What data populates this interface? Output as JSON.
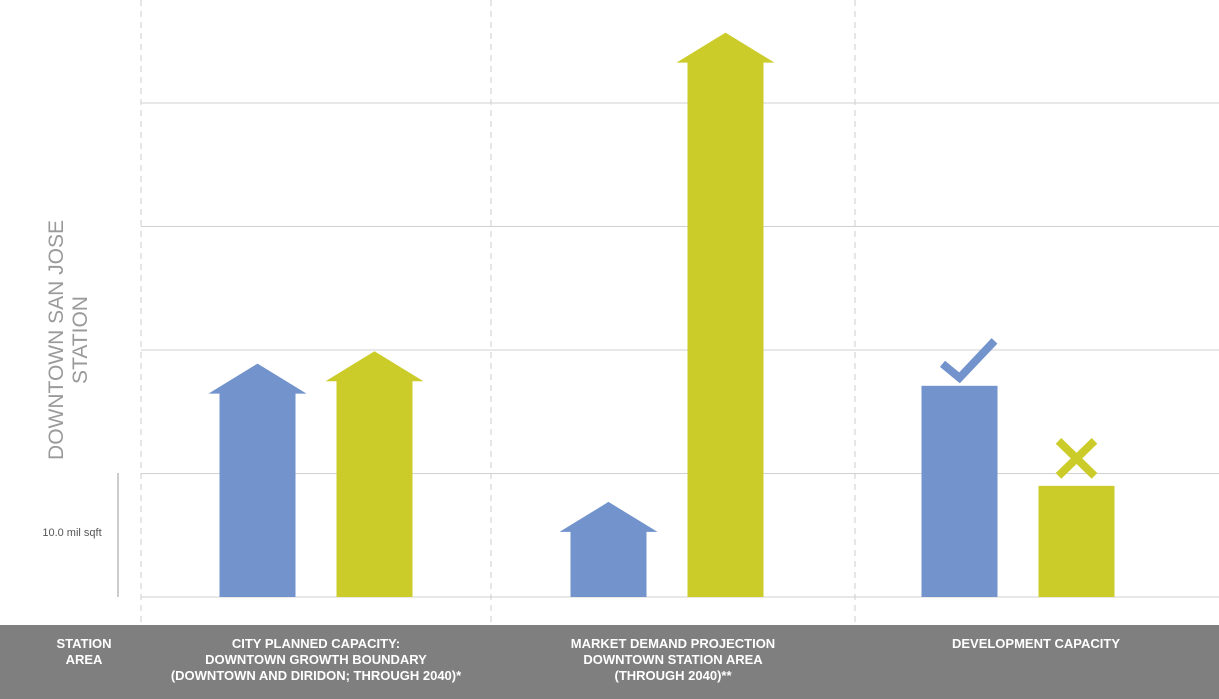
{
  "chart_data": {
    "type": "arrow-bar",
    "y_label": [
      "DOWNTOWN SAN JOSE",
      "STATION"
    ],
    "scale_label": "10.0 mil sqft",
    "row_header": "STATION\nAREA",
    "categories": [
      "CITY PLANNED CAPACITY:\nDOWNTOWN GROWTH BOUNDARY\n(DOWNTOWN AND DIRIDON; THROUGH 2040)*",
      "MARKET DEMAND PROJECTION\nDOWNTOWN STATION AREA\n(THROUGH 2040)**",
      "DEVELOPMENT CAPACITY"
    ],
    "bar_styles": [
      "arrow",
      "arrow",
      "block"
    ],
    "series": [
      {
        "color": "#7293cb",
        "values": [
          18.9,
          7.7,
          17.1
        ]
      },
      {
        "color": "#cbcc29",
        "values": [
          19.9,
          45.7,
          9.0
        ]
      }
    ],
    "ylim": [
      0,
      48
    ],
    "yticks": [
      0,
      10,
      20,
      30,
      40
    ],
    "grid": true
  }
}
